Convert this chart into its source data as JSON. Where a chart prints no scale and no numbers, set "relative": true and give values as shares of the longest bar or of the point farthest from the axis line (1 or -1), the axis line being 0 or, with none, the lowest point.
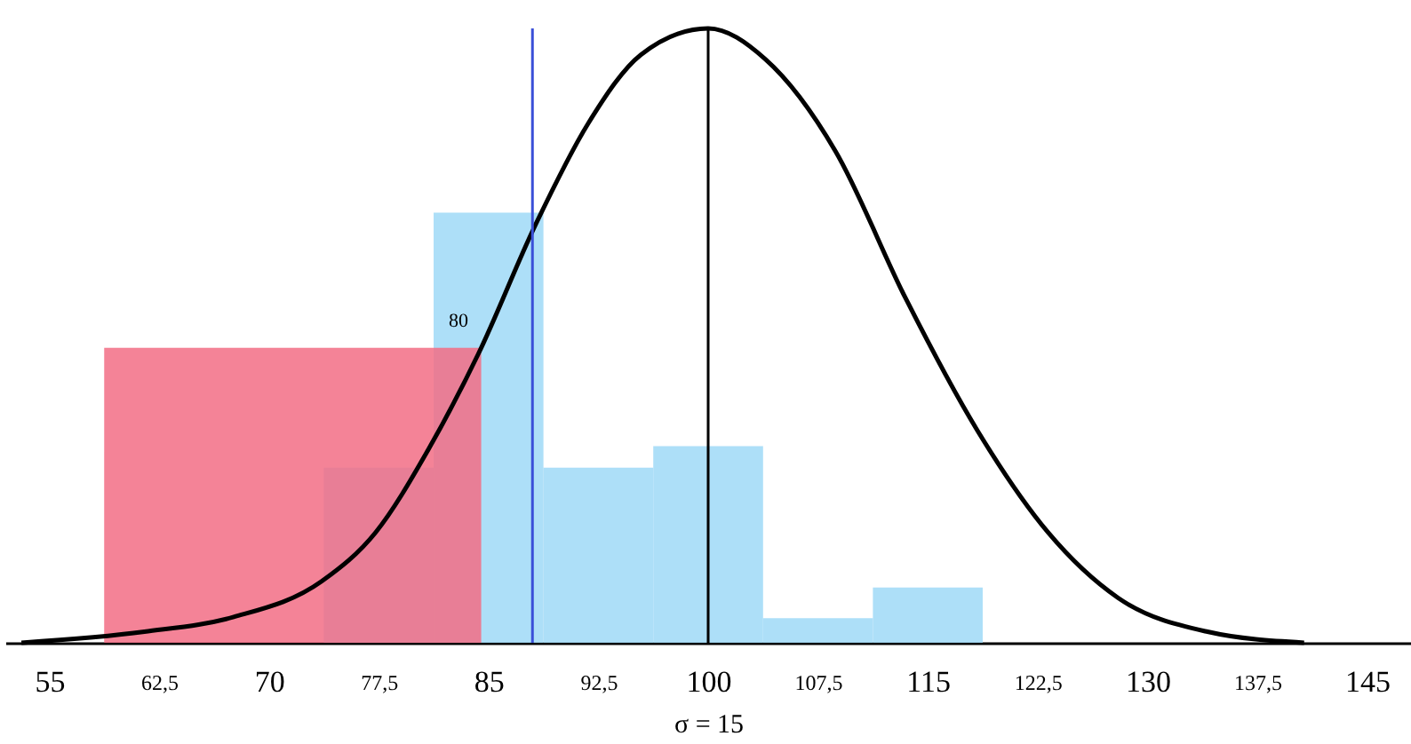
{
  "chart_data": {
    "type": "histogram",
    "relative": true,
    "xlabel": "σ = 15",
    "xlim": [
      52,
      148
    ],
    "xticks": [
      55,
      {
        "value": 62.5,
        "label": "62,5"
      },
      70,
      {
        "value": 77.5,
        "label": "77,5"
      },
      85,
      {
        "value": 92.5,
        "label": "92,5"
      },
      100,
      {
        "value": 107.5,
        "label": "107,5"
      },
      115,
      {
        "value": 122.5,
        "label": "122,5"
      },
      130,
      {
        "value": 137.5,
        "label": "137,5"
      },
      145
    ],
    "series": [
      {
        "color": "#9fd9f7",
        "bins": [
          73.75,
          81.25,
          88.75,
          96.25,
          103.75,
          111.25,
          118.75
        ],
        "values": [
          0.285,
          0.7,
          0.285,
          0.32,
          0.04,
          0.09
        ]
      },
      {
        "color": "#f26d85",
        "bins": [
          58.75,
          84.5
        ],
        "values": [
          0.48
        ]
      },
      {
        "type": "line",
        "color": "#000000",
        "x": [
          53.1,
          61.5,
          67.6,
          73.6,
          77.3,
          80.9,
          84.3,
          88.2,
          91.8,
          95.4,
          100,
          103.9,
          108.7,
          113.5,
          118.4,
          123.2,
          128,
          134.1,
          140.7
        ],
        "values": [
          0,
          0.018,
          0.042,
          0.1,
          0.18,
          0.315,
          0.47,
          0.68,
          0.845,
          0.957,
          1,
          0.95,
          0.8,
          0.56,
          0.345,
          0.18,
          0.073,
          0.018,
          0
        ]
      }
    ],
    "ref_lines": [
      {
        "axis": "x",
        "value": 100,
        "color": "#000000"
      },
      {
        "axis": "x",
        "value": 88,
        "color": "#3a4fd8"
      }
    ],
    "annotations": [
      "80"
    ],
    "grid": false,
    "legend": false,
    "marker": "none",
    "line_style": "solid"
  }
}
